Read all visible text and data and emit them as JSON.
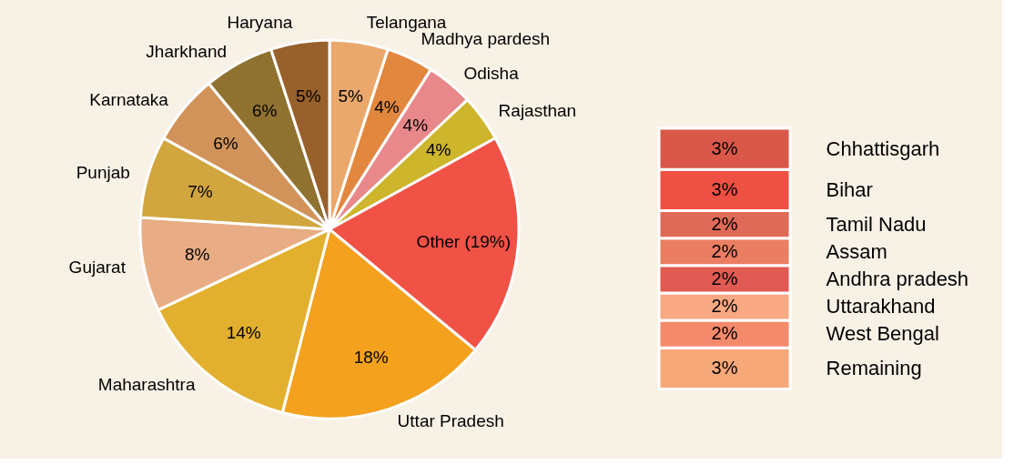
{
  "chart_data": [
    {
      "type": "pie",
      "categories": [
        "Telangana",
        "Madhya pardesh",
        "Odisha",
        "Rajasthan",
        null,
        "Uttar Pradesh",
        "Maharashtra",
        "Gujarat",
        "Punjab",
        "Karnataka",
        "Jharkhand",
        "Haryana"
      ],
      "values": [
        5,
        4,
        4,
        4,
        19,
        18,
        14,
        8,
        7,
        6,
        6,
        5
      ],
      "value_labels": [
        "5%",
        "4%",
        "4%",
        "4%",
        "Other (19%)",
        "18%",
        "14%",
        "8%",
        "7%",
        "6%",
        "6%",
        "5%"
      ],
      "colors": [
        "#eaa86c",
        "#e2873e",
        "#e8888a",
        "#cdb52c",
        "#f05246",
        "#f4a11e",
        "#e2b02e",
        "#e8ad84",
        "#d1a63e",
        "#d2935a",
        "#8f7230",
        "#98602a"
      ]
    },
    {
      "type": "bar",
      "stacked": true,
      "categories": [
        null
      ],
      "series": [
        {
          "name": "Remaining",
          "color": "#f6a878",
          "values": [
            3
          ],
          "value_labels": [
            "3%"
          ]
        },
        {
          "name": "West Bengal",
          "color": "#f48a6c",
          "values": [
            2
          ],
          "value_labels": [
            "2%"
          ]
        },
        {
          "name": "Uttarakhand",
          "color": "#f8a882",
          "values": [
            2
          ],
          "value_labels": [
            "2%"
          ]
        },
        {
          "name": "Andhra pradesh",
          "color": "#e15a53",
          "values": [
            2
          ],
          "value_labels": [
            "2%"
          ]
        },
        {
          "name": "Assam",
          "color": "#eb7d63",
          "values": [
            2
          ],
          "value_labels": [
            "2%"
          ]
        },
        {
          "name": "Tamil Nadu",
          "color": "#e06a58",
          "values": [
            2
          ],
          "value_labels": [
            "2%"
          ]
        },
        {
          "name": "Bihar",
          "color": "#ee5043",
          "values": [
            3
          ],
          "value_labels": [
            "3%"
          ]
        },
        {
          "name": "Chhattisgarh",
          "color": "#d9584a",
          "values": [
            3
          ],
          "value_labels": [
            "3%"
          ]
        }
      ]
    }
  ]
}
